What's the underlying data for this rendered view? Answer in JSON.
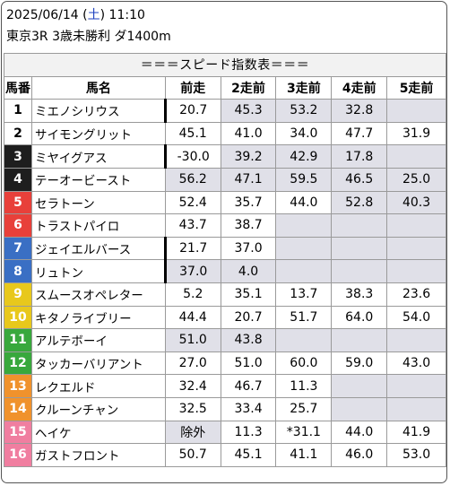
{
  "header": {
    "date": "2025/06/14",
    "weekday_open": "(",
    "weekday": "土",
    "weekday_close": ")",
    "time": "11:10",
    "race": "東京3R 3歳未勝利 ダ1400m"
  },
  "table": {
    "title": "＝＝＝スピード指数表＝＝＝",
    "columns": [
      "馬番",
      "馬名",
      "前走",
      "2走前",
      "3走前",
      "4走前",
      "5走前"
    ],
    "frame_colors": {
      "1": {
        "bg": "#ffffff",
        "fg": "#000000"
      },
      "2": {
        "bg": "#ffffff",
        "fg": "#000000"
      },
      "3": {
        "bg": "#1e1e1e",
        "fg": "#ffffff"
      },
      "4": {
        "bg": "#1e1e1e",
        "fg": "#ffffff"
      },
      "5": {
        "bg": "#e8403a",
        "fg": "#ffffff"
      },
      "6": {
        "bg": "#e8403a",
        "fg": "#ffffff"
      },
      "7": {
        "bg": "#3a6fc4",
        "fg": "#ffffff"
      },
      "8": {
        "bg": "#3a6fc4",
        "fg": "#ffffff"
      },
      "9": {
        "bg": "#e8c81c",
        "fg": "#ffffff"
      },
      "10": {
        "bg": "#e8c81c",
        "fg": "#ffffff"
      },
      "11": {
        "bg": "#38a83c",
        "fg": "#ffffff"
      },
      "12": {
        "bg": "#38a83c",
        "fg": "#ffffff"
      },
      "13": {
        "bg": "#f0922c",
        "fg": "#ffffff"
      },
      "14": {
        "bg": "#f0922c",
        "fg": "#ffffff"
      },
      "15": {
        "bg": "#f07ea0",
        "fg": "#ffffff"
      },
      "16": {
        "bg": "#f07ea0",
        "fg": "#ffffff"
      }
    },
    "shade_color": "#e0e0e8",
    "rows": [
      {
        "no": "1",
        "name": "ミエノシリウス",
        "marked": true,
        "vals": [
          "20.7",
          "45.3",
          "53.2",
          "32.8",
          ""
        ],
        "shaded": [
          false,
          true,
          true,
          true,
          true
        ]
      },
      {
        "no": "2",
        "name": "サイモングリット",
        "marked": false,
        "vals": [
          "45.1",
          "41.0",
          "34.0",
          "47.7",
          "31.9"
        ],
        "shaded": [
          false,
          false,
          false,
          false,
          false
        ]
      },
      {
        "no": "3",
        "name": "ミヤイグアス",
        "marked": true,
        "vals": [
          "-30.0",
          "39.2",
          "42.9",
          "17.8",
          ""
        ],
        "shaded": [
          false,
          true,
          true,
          true,
          true
        ]
      },
      {
        "no": "4",
        "name": "テーオービースト",
        "marked": false,
        "vals": [
          "56.2",
          "47.1",
          "59.5",
          "46.5",
          "25.0"
        ],
        "shaded": [
          true,
          true,
          true,
          true,
          true
        ]
      },
      {
        "no": "5",
        "name": "セラトーン",
        "marked": false,
        "vals": [
          "52.4",
          "35.7",
          "44.0",
          "52.8",
          "40.3"
        ],
        "shaded": [
          false,
          false,
          false,
          true,
          true
        ]
      },
      {
        "no": "6",
        "name": "トラストパイロ",
        "marked": false,
        "vals": [
          "43.7",
          "38.7",
          "",
          "",
          ""
        ],
        "shaded": [
          false,
          false,
          true,
          true,
          true
        ]
      },
      {
        "no": "7",
        "name": "ジェイエルバース",
        "marked": true,
        "vals": [
          "21.7",
          "37.0",
          "",
          "",
          ""
        ],
        "shaded": [
          false,
          false,
          true,
          true,
          true
        ]
      },
      {
        "no": "8",
        "name": "リュトン",
        "marked": true,
        "vals": [
          "37.0",
          "4.0",
          "",
          "",
          ""
        ],
        "shaded": [
          true,
          true,
          true,
          true,
          true
        ]
      },
      {
        "no": "9",
        "name": "スムースオペレター",
        "marked": false,
        "vals": [
          "5.2",
          "35.1",
          "13.7",
          "38.3",
          "23.6"
        ],
        "shaded": [
          false,
          false,
          false,
          false,
          false
        ]
      },
      {
        "no": "10",
        "name": "キタノライブリー",
        "marked": false,
        "vals": [
          "44.4",
          "20.7",
          "51.7",
          "64.0",
          "54.0"
        ],
        "shaded": [
          false,
          false,
          false,
          false,
          false
        ]
      },
      {
        "no": "11",
        "name": "アルテボーイ",
        "marked": false,
        "vals": [
          "51.0",
          "43.8",
          "",
          "",
          ""
        ],
        "shaded": [
          true,
          true,
          true,
          true,
          true
        ]
      },
      {
        "no": "12",
        "name": "タッカーバリアント",
        "marked": false,
        "vals": [
          "27.0",
          "51.0",
          "60.0",
          "59.0",
          "43.0"
        ],
        "shaded": [
          false,
          false,
          false,
          false,
          false
        ]
      },
      {
        "no": "13",
        "name": "レクエルド",
        "marked": false,
        "vals": [
          "32.4",
          "46.7",
          "11.3",
          "",
          ""
        ],
        "shaded": [
          false,
          false,
          false,
          true,
          true
        ]
      },
      {
        "no": "14",
        "name": "クルーンチャン",
        "marked": false,
        "vals": [
          "32.5",
          "33.4",
          "25.7",
          "",
          ""
        ],
        "shaded": [
          false,
          false,
          false,
          true,
          true
        ]
      },
      {
        "no": "15",
        "name": "ヘイケ",
        "marked": false,
        "vals": [
          "除外",
          "11.3",
          "*31.1",
          "44.0",
          "41.9"
        ],
        "shaded": [
          true,
          false,
          false,
          false,
          false
        ]
      },
      {
        "no": "16",
        "name": "ガストフロント",
        "marked": false,
        "vals": [
          "50.7",
          "45.1",
          "41.1",
          "46.0",
          "53.0"
        ],
        "shaded": [
          false,
          false,
          false,
          false,
          false
        ]
      }
    ]
  }
}
